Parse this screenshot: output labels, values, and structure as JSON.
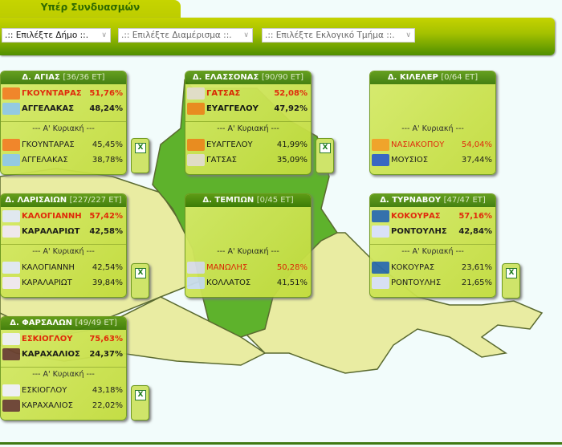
{
  "tab": {
    "label": "Υπέρ Συνδυασμών"
  },
  "filters": [
    {
      "value": ".:: Επιλέξτε Δήμο ::.",
      "active": true
    },
    {
      "value": ".:: Επιλέξτε Διαμέρισμα ::.",
      "active": false
    },
    {
      "value": ".:: Επιλέξτε Εκλογικό Τμήμα ::.",
      "active": false
    }
  ],
  "first_round_label": "--- Α' Κυριακή ---",
  "colors": {
    "winner": "#e02000",
    "map_light": "#e9eca2",
    "map_green": "#5eb22c",
    "header": "#3c7a06"
  },
  "municipalities": [
    {
      "name": "Δ. ΑΓΙΑΣ",
      "count": "[36/36 ΕΤ]",
      "excel": true,
      "second": [
        {
          "name": "ΓΚΟΥΝΤΑΡΑΣ",
          "pct": "51,76%",
          "win": true,
          "logo": "#f08020"
        },
        {
          "name": "ΑΓΓΕΛΑΚΑΣ",
          "pct": "48,24%",
          "logo": "#8fc8e0"
        }
      ],
      "first": [
        {
          "name": "ΓΚΟΥΝΤΑΡΑΣ",
          "pct": "45,45%",
          "logo": "#f08020"
        },
        {
          "name": "ΑΓΓΕΛΑΚΑΣ",
          "pct": "38,78%",
          "logo": "#8fc8e0"
        }
      ]
    },
    {
      "name": "Δ. ΕΛΑΣΣΟΝΑΣ",
      "count": "[90/90 ΕΤ]",
      "excel": true,
      "second": [
        {
          "name": "ΓΑΤΣΑΣ",
          "pct": "52,08%",
          "win": true,
          "logo": "#e8e0d0"
        },
        {
          "name": "ΕΥΑΓΓΕΛΟΥ",
          "pct": "47,92%",
          "logo": "#f08a20"
        }
      ],
      "first": [
        {
          "name": "ΕΥΑΓΓΕΛΟΥ",
          "pct": "41,99%",
          "logo": "#f08a20"
        },
        {
          "name": "ΓΑΤΣΑΣ",
          "pct": "35,09%",
          "logo": "#e8e0d0"
        }
      ]
    },
    {
      "name": "Δ. ΚΙΛΕΛΕΡ",
      "count": "[0/64 ΕΤ]",
      "excel": false,
      "second": [],
      "first": [
        {
          "name": "ΝΑΣΙΑΚΟΠΟΥ",
          "pct": "54,04%",
          "win": true,
          "logo": "#f0a020"
        },
        {
          "name": "ΜΟΥΣΙΟΣ",
          "pct": "37,44%",
          "logo": "#3060c0"
        }
      ]
    },
    {
      "name": "Δ. ΛΑΡΙΣΑΙΩΝ",
      "count": "[227/227 ΕΤ]",
      "excel": true,
      "second": [
        {
          "name": "ΚΑΛΟΓΙΑΝΝΗ",
          "pct": "57,42%",
          "win": true,
          "logo": "#e0e8f4"
        },
        {
          "name": "ΚΑΡΑΛΑΡΙΩΤ",
          "pct": "42,58%",
          "logo": "#f0e8f0"
        }
      ],
      "first": [
        {
          "name": "ΚΑΛΟΓΙΑΝΝΗ",
          "pct": "42,54%",
          "logo": "#e0e8f4"
        },
        {
          "name": "ΚΑΡΑΛΑΡΙΩΤ",
          "pct": "39,84%",
          "logo": "#f0e8f0"
        }
      ]
    },
    {
      "name": "Δ. ΤΕΜΠΩΝ",
      "count": "[0/45 ΕΤ]",
      "excel": false,
      "second": [],
      "first": [
        {
          "name": "ΜΑΝΩΛΗΣ",
          "pct": "50,28%",
          "win": true,
          "logo": "#d8dce8"
        },
        {
          "name": "ΚΟΛΛΑΤΟΣ",
          "pct": "41,51%",
          "logo": "#c8dcec"
        }
      ]
    },
    {
      "name": "Δ. ΤΥΡΝΑΒΟΥ",
      "count": "[47/47 ΕΤ]",
      "excel": true,
      "second": [
        {
          "name": "ΚΟΚΟΥΡΑΣ",
          "pct": "57,16%",
          "win": true,
          "logo": "#2a6aa8"
        },
        {
          "name": "ΡΟΝΤΟΥΛΗΣ",
          "pct": "42,84%",
          "logo": "#d8e0f8"
        }
      ],
      "first": [
        {
          "name": "ΚΟΚΟΥΡΑΣ",
          "pct": "23,61%",
          "logo": "#2a6aa8"
        },
        {
          "name": "ΡΟΝΤΟΥΛΗΣ",
          "pct": "21,65%",
          "logo": "#d8e0f8"
        }
      ]
    },
    {
      "name": "Δ. ΦΑΡΣΑΛΩΝ",
      "count": "[49/49 ΕΤ]",
      "excel": true,
      "second": [
        {
          "name": "ΕΣΚΙΟΓΛΟΥ",
          "pct": "75,63%",
          "win": true,
          "logo": "#eef0f4"
        },
        {
          "name": "ΚΑΡΑΧΑΛΙΟΣ",
          "pct": "24,37%",
          "logo": "#6a4030"
        }
      ],
      "first": [
        {
          "name": "ΕΣΚΙΟΓΛΟΥ",
          "pct": "43,18%",
          "logo": "#eef0f4"
        },
        {
          "name": "ΚΑΡΑΧΑΛΙΟΣ",
          "pct": "22,02%",
          "logo": "#6a4030"
        }
      ]
    }
  ]
}
